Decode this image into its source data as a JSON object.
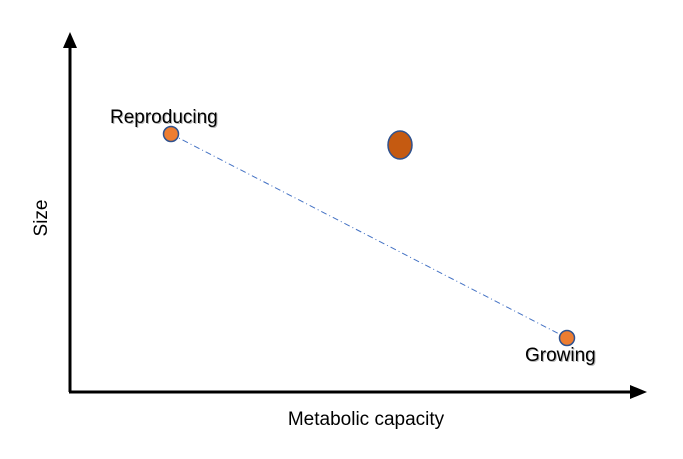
{
  "axes": {
    "x_label": "Metabolic capacity",
    "y_label": "Size"
  },
  "points": {
    "reproducing": {
      "label": "Reproducing"
    },
    "growing": {
      "label": "Growing"
    },
    "unlabeled": {
      "label": ""
    }
  },
  "colors": {
    "axis": "#000000",
    "point_fill": "#ed7d31",
    "point_stroke": "#2f528f",
    "large_point_fill": "#c55a11",
    "large_point_stroke": "#2f528f",
    "dashed_line": "#4472c4"
  }
}
